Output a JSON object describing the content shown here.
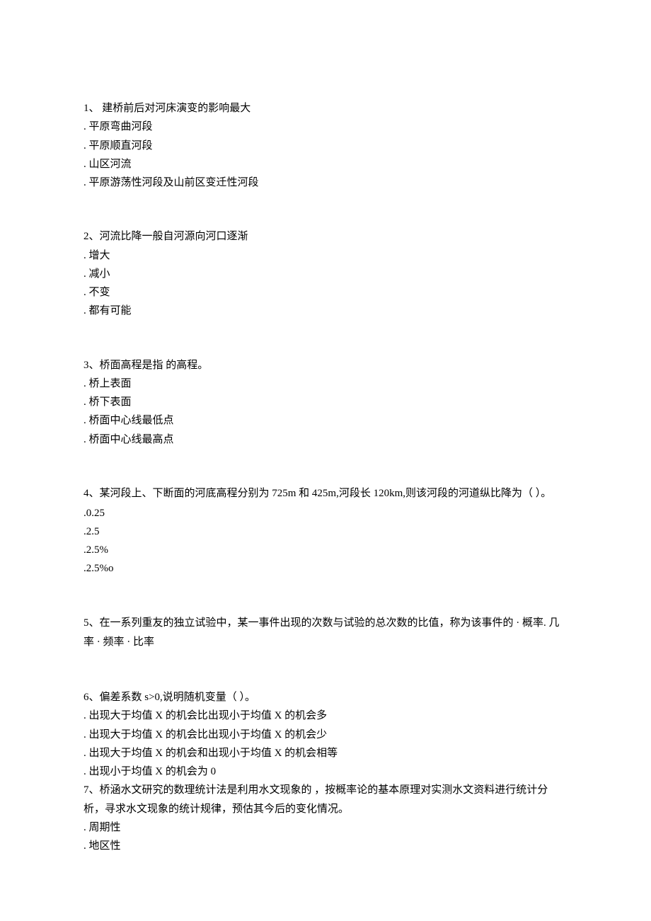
{
  "questions": [
    {
      "number": "1",
      "text": "1、            建桥前后对河床演变的影响最大",
      "options": [
        ". 平原弯曲河段",
        ". 平原顺直河段",
        ". 山区河流",
        ". 平原游荡性河段及山前区变迁性河段"
      ]
    },
    {
      "number": "2",
      "text": "2、河流比降一般自河源向河口逐渐",
      "options": [
        ". 增大",
        ". 减小",
        ". 不变",
        ". 都有可能"
      ]
    },
    {
      "number": "3",
      "text": "3、桥面高程是指          的高程。",
      "options": [
        ". 桥上表面",
        ". 桥下表面",
        ". 桥面中心线最低点",
        ". 桥面中心线最高点"
      ]
    },
    {
      "number": "4",
      "text": "4、某河段上、下断面的河底高程分别为 725m 和 425m,河段长 120km,则该河段的河道纵比降为（                  ）。",
      "options": [
        ".0.25",
        ".2.5",
        ".2.5%",
        ".2.5%o"
      ]
    },
    {
      "number": "5",
      "text": "5、在一系列重友的独立试验中，某一事件出现的次数与试验的总次数的比值，称为该事件的 · 概率. 几率 · 频率 · 比率",
      "options": []
    },
    {
      "number": "6",
      "text": "6、偏差系数 s>0,说明随机变量（            ）。",
      "options": [
        ". 出现大于均值 X 的机会比出现小于均值 X 的机会多",
        ". 出现大于均值 X 的机会比出现小于均值 X 的机会少",
        ". 出现大于均值 X 的机会和出现小于均值 X 的机会相等",
        ". 出现小于均值 X 的机会为 0"
      ]
    },
    {
      "number": "7",
      "text": "7、桥涵水文研究的数理统计法是利用水文现象的          ，按概率论的基本原理对实测水文资料进行统计分析，寻求水文现象的统计规律，预估其今后的变化情况。",
      "options": [
        ". 周期性",
        ". 地区性"
      ]
    }
  ]
}
